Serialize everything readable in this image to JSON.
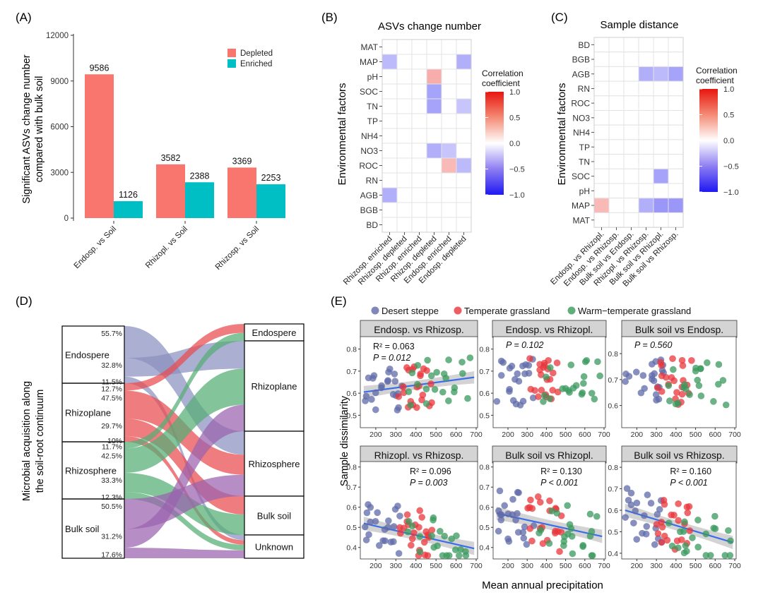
{
  "colors": {
    "depleted": "#f8766d",
    "enriched": "#00bfc4",
    "desert": "#5f6aa8",
    "temperate": "#e8363b",
    "warm": "#3a9a5d",
    "reg_line": "#3a6ee8",
    "strip": "#d4d4d4",
    "flow_endo": "#8a90bf",
    "flow_rhizoplane": "#e94b4f",
    "flow_rhizosphere": "#53ad74",
    "flow_bulk": "#9a62ae"
  },
  "chart_data": [
    {
      "panel": "A",
      "label": "(A)",
      "type": "bar",
      "ylabel_lines": [
        "Significant ASVs change number",
        "compared with bulk soil"
      ],
      "ylim": [
        0,
        12000
      ],
      "yticks": [
        "0",
        "3000",
        "6000",
        "9000",
        "12000"
      ],
      "categories": [
        "Endosp. vs Soil",
        "Rhizopl. vs Soil",
        "Rhizosp. vs Soil"
      ],
      "series": [
        {
          "name": "Depleted",
          "values": [
            9586,
            3582,
            3369
          ]
        },
        {
          "name": "Enriched",
          "values": [
            1126,
            2388,
            2253
          ]
        }
      ],
      "value_labels": [
        [
          "9586",
          "1126"
        ],
        [
          "3582",
          "2388"
        ],
        [
          "3369",
          "2253"
        ]
      ],
      "legend": [
        "Depleted",
        "Enriched"
      ]
    },
    {
      "panel": "B",
      "label": "(B)",
      "type": "heatmap",
      "title": "ASVs change number",
      "ylabel": "Environmental factors",
      "rows": [
        "MAT",
        "MAP",
        "pH",
        "SOC",
        "TN",
        "TP",
        "NH4",
        "NO3",
        "ROC",
        "RN",
        "AGB",
        "BGB",
        "BD"
      ],
      "columns": [
        "Rhizosp. enriched",
        "Rhizosp. depleted",
        "Rhizop. enriched",
        "Rhizop. depleted",
        "Endosp. enriched",
        "Endosp. depleted"
      ],
      "cells": [
        {
          "row": "MAP",
          "col": "Rhizosp. enriched",
          "value": -0.3
        },
        {
          "row": "MAP",
          "col": "Endosp. depleted",
          "value": -0.35
        },
        {
          "row": "pH",
          "col": "Rhizop. depleted",
          "value": 0.35
        },
        {
          "row": "SOC",
          "col": "Rhizop. depleted",
          "value": -0.4
        },
        {
          "row": "TN",
          "col": "Rhizop. depleted",
          "value": -0.4
        },
        {
          "row": "TN",
          "col": "Endosp. depleted",
          "value": -0.25
        },
        {
          "row": "NO3",
          "col": "Rhizop. depleted",
          "value": -0.35
        },
        {
          "row": "NO3",
          "col": "Endosp. enriched",
          "value": -0.25
        },
        {
          "row": "ROC",
          "col": "Endosp. enriched",
          "value": 0.3
        },
        {
          "row": "ROC",
          "col": "Endosp. depleted",
          "value": -0.3
        },
        {
          "row": "AGB",
          "col": "Rhizosp. enriched",
          "value": -0.35
        }
      ],
      "legend_title": [
        "Correlation",
        "coefficient"
      ],
      "legend_ticks": [
        "1.0",
        "0.5",
        "0.0",
        "−0.5",
        "−1.0"
      ]
    },
    {
      "panel": "C",
      "label": "(C)",
      "type": "heatmap",
      "title": "Sample distance",
      "ylabel": "Environmental factors",
      "rows": [
        "BD",
        "BGB",
        "AGB",
        "RN",
        "ROC",
        "NO3",
        "NH4",
        "TP",
        "TN",
        "SOC",
        "pH",
        "MAP",
        "MAT"
      ],
      "columns": [
        "Endosp. vs Rhizopl.",
        "Endosp. vs Rhizosp.",
        "Bulk soil vs Endosp.",
        "Rhizopl. vs Rhizosp.",
        "Bulk soil vs Rhizopl.",
        "Bulk soil vs Rhizosp."
      ],
      "cells": [
        {
          "row": "AGB",
          "col": "Rhizopl. vs Rhizosp.",
          "value": -0.35
        },
        {
          "row": "AGB",
          "col": "Bulk soil vs Rhizopl.",
          "value": -0.3
        },
        {
          "row": "AGB",
          "col": "Bulk soil vs Rhizosp.",
          "value": -0.4
        },
        {
          "row": "SOC",
          "col": "Bulk soil vs Rhizopl.",
          "value": -0.4
        },
        {
          "row": "MAP",
          "col": "Endosp. vs Rhizopl.",
          "value": 0.3
        },
        {
          "row": "MAP",
          "col": "Rhizopl. vs Rhizosp.",
          "value": -0.35
        },
        {
          "row": "MAP",
          "col": "Bulk soil vs Rhizopl.",
          "value": -0.45
        },
        {
          "row": "MAP",
          "col": "Bulk soil vs Rhizosp.",
          "value": -0.45
        }
      ],
      "legend_title": [
        "Correlation",
        "coefficient"
      ],
      "legend_ticks": [
        "1.0",
        "0.5",
        "0.0",
        "−0.5",
        "−1.0"
      ]
    },
    {
      "panel": "D",
      "label": "(D)",
      "type": "sankey",
      "ylabel_lines": [
        "Microbial acquisition along",
        "the soil-root continuum"
      ],
      "sources": [
        {
          "name": "Endospere",
          "segments": [
            {
              "target": "Rhizosphere",
              "pct": "55.7%",
              "value": 55.7
            },
            {
              "target": "Rhizoplane",
              "pct": "32.8%",
              "value": 32.8
            },
            {
              "target": "Unknown",
              "pct": "11.5%",
              "value": 11.5
            }
          ]
        },
        {
          "name": "Rhizoplane",
          "segments": [
            {
              "target": "Endospere",
              "pct": "12.7%",
              "value": 12.7
            },
            {
              "target": "Rhizosphere",
              "pct": "47.5%",
              "value": 47.5
            },
            {
              "target": "Bulk soil",
              "pct": "29.7%",
              "value": 29.7
            },
            {
              "target": "Unknown",
              "pct": "10%",
              "value": 10
            }
          ]
        },
        {
          "name": "Rhizosphere",
          "segments": [
            {
              "target": "Endospere",
              "pct": "11.7%",
              "value": 11.7
            },
            {
              "target": "Rhizoplane",
              "pct": "42.5%",
              "value": 42.5
            },
            {
              "target": "Bulk soil",
              "pct": "33.3%",
              "value": 33.3
            },
            {
              "target": "Unknown",
              "pct": "12.3%",
              "value": 12.3
            }
          ]
        },
        {
          "name": "Bulk soil",
          "segments": [
            {
              "target": "Rhizosphere",
              "pct": "50.5%",
              "value": 50.5
            },
            {
              "target": "Rhizoplane",
              "pct": "31.2%",
              "value": 31.2
            },
            {
              "target": "Unknown",
              "pct": "17.6%",
              "value": 17.6
            }
          ]
        }
      ],
      "targets": [
        "Endospere",
        "Rhizoplane",
        "Rhizosphere",
        "Bulk soil",
        "Unknown"
      ]
    },
    {
      "panel": "E",
      "label": "(E)",
      "type": "scatter",
      "xlabel": "Mean annual precipitation",
      "ylabel": "Sample dissimilarity",
      "legend": [
        "Desert steppe",
        "Temperate grassland",
        "Warm−temperate grassland"
      ],
      "xlim": [
        130,
        700
      ],
      "xticks": [
        "200",
        "300",
        "400",
        "500",
        "600",
        "700"
      ],
      "facets": [
        {
          "title": "Endosp. vs Rhizosp.",
          "ylim": [
            0.45,
            0.85
          ],
          "yticks": [
            "0.5",
            "0.6",
            "0.7",
            "0.8"
          ],
          "r2": "R² = 0.063",
          "p": "P = 0.012",
          "fit": [
            [
              140,
              0.605
            ],
            [
              690,
              0.672
            ]
          ],
          "seed": 11
        },
        {
          "title": "Endosp. vs Rhizopl.",
          "ylim": [
            0.45,
            0.85
          ],
          "yticks": [
            "0.5",
            "0.6",
            "0.7",
            "0.8"
          ],
          "r2": "",
          "p": "P = 0.102",
          "fit": null,
          "seed": 23
        },
        {
          "title": "Bulk soil vs Endosp.",
          "ylim": [
            0.52,
            0.86
          ],
          "yticks": [
            "0.6",
            "0.7",
            "0.8"
          ],
          "r2": "",
          "p": "P = 0.560",
          "fit": null,
          "seed": 37
        },
        {
          "title": "Rhizopl. vs Rhizosp.",
          "ylim": [
            0.35,
            0.82
          ],
          "yticks": [
            "0.4",
            "0.5",
            "0.6",
            "0.7",
            "0.8"
          ],
          "r2": "R² = 0.096",
          "p": "P = 0.003",
          "fit": [
            [
              140,
              0.52
            ],
            [
              690,
              0.395
            ]
          ],
          "seed": 41
        },
        {
          "title": "Bulk soil vs Rhizopl.",
          "ylim": [
            0.35,
            0.82
          ],
          "yticks": [
            "0.4",
            "0.5",
            "0.6",
            "0.7",
            "0.8"
          ],
          "r2": "R² = 0.130",
          "p": "P < 0.001",
          "fit": [
            [
              140,
              0.57
            ],
            [
              690,
              0.455
            ]
          ],
          "seed": 53
        },
        {
          "title": "Bulk soil vs Rhizosp.",
          "ylim": [
            0.38,
            0.82
          ],
          "yticks": [
            "0.4",
            "0.5",
            "0.6",
            "0.7",
            "0.8"
          ],
          "r2": "R² = 0.160",
          "p": "P < 0.001",
          "fit": [
            [
              140,
              0.6
            ],
            [
              690,
              0.45
            ]
          ],
          "seed": 67
        }
      ]
    }
  ]
}
